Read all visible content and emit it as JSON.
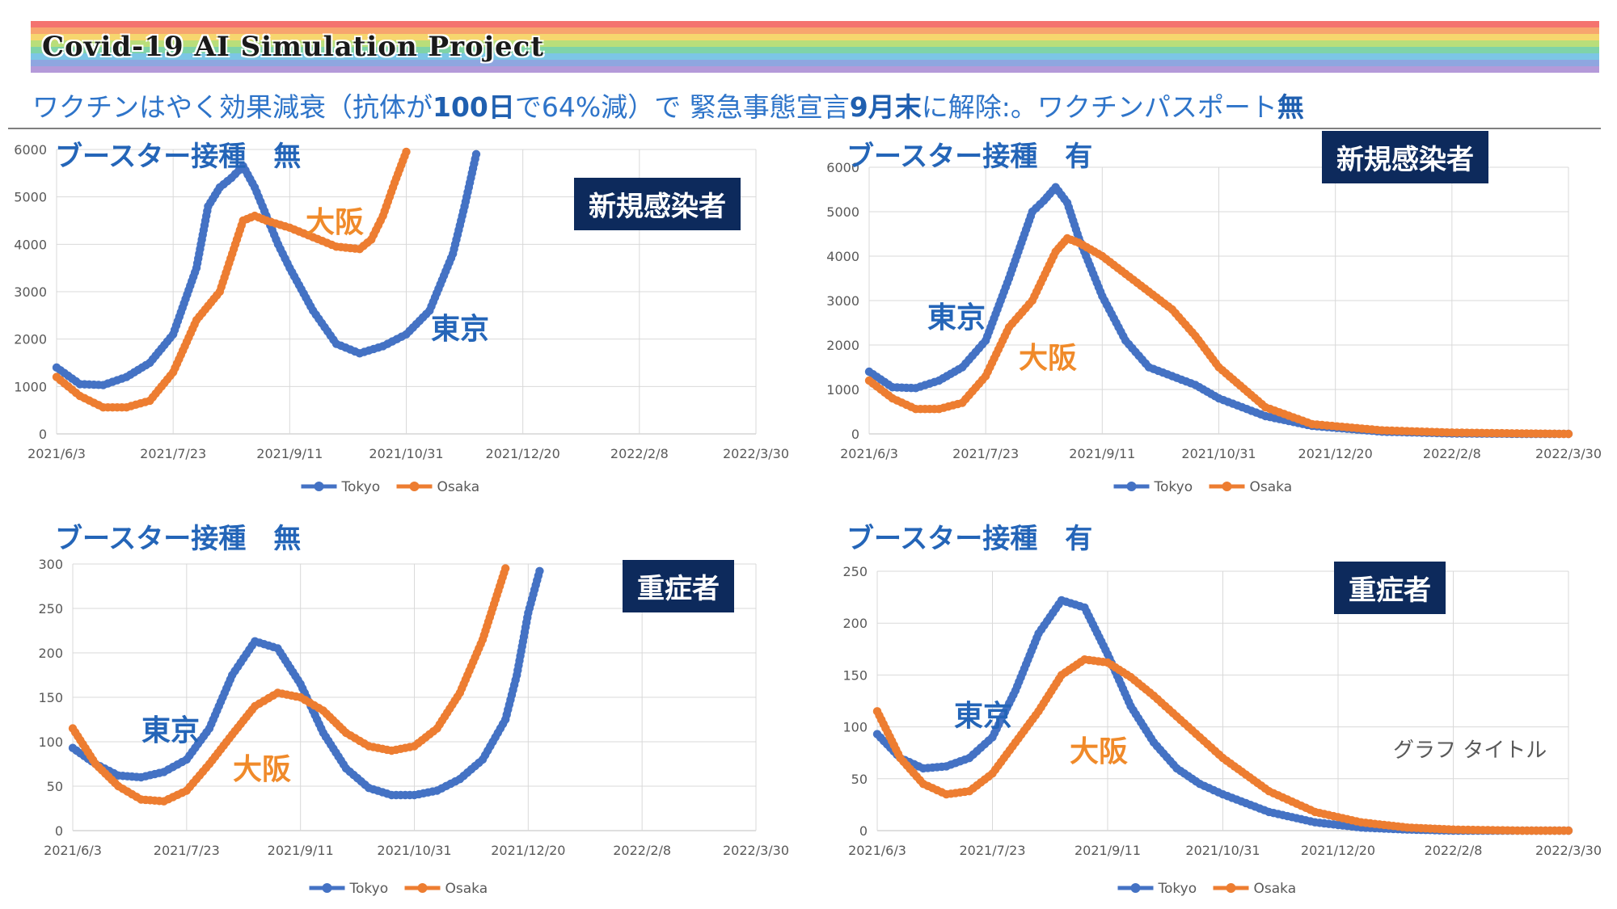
{
  "header": {
    "title": "Covid-19 AI Simulation Project",
    "subtitle_parts": [
      {
        "text": "ワクチンはやく効果減衰（抗体が",
        "em": false
      },
      {
        "text": "100日",
        "em": true
      },
      {
        "text": "で64%減）で 緊急事態宣言",
        "em": false
      },
      {
        "text": "9月末",
        "em": true
      },
      {
        "text": "に解除:。ワクチンパスポート",
        "em": false
      },
      {
        "text": "無",
        "em": true
      }
    ],
    "rainbow_colors": [
      "#f4736f",
      "#f7a56e",
      "#f6d66e",
      "#b9de7a",
      "#7fd3a8",
      "#7cc6e5",
      "#8fa6e0",
      "#b49ad9"
    ]
  },
  "colors": {
    "tokyo": "#4472c4",
    "osaka": "#ed7d31",
    "badge": "#0d2a5c",
    "grid": "#d9d9d9"
  },
  "legend": {
    "tokyo": "Tokyo",
    "osaka": "Osaka"
  },
  "panels": [
    {
      "title": "ブースター接種　無",
      "badge": "新規感染者",
      "label_tokyo": "東京",
      "label_osaka": "大阪",
      "chart_title": ""
    },
    {
      "title": "ブースター接種　有",
      "badge": "新規感染者",
      "label_tokyo": "東京",
      "label_osaka": "大阪",
      "chart_title": ""
    },
    {
      "title": "ブースター接種　無",
      "badge": "重症者",
      "label_tokyo": "東京",
      "label_osaka": "大阪",
      "chart_title": ""
    },
    {
      "title": "ブースター接種　有",
      "badge": "重症者",
      "label_tokyo": "東京",
      "label_osaka": "大阪",
      "chart_title": "グラフ タイトル"
    }
  ],
  "chart_data": [
    {
      "type": "line",
      "title": "",
      "xlabel": "",
      "ylabel": "",
      "x_ticks": [
        "2021/6/3",
        "2021/7/23",
        "2021/9/11",
        "2021/10/31",
        "2021/12/20",
        "2022/2/8",
        "2022/3/30"
      ],
      "ylim": [
        0,
        6000
      ],
      "y_ticks": [
        0,
        1000,
        2000,
        3000,
        4000,
        5000,
        6000
      ],
      "grid": true,
      "legend": "bottom",
      "series": [
        {
          "name": "Tokyo",
          "x": [
            "2021/6/3",
            "2021/6/13",
            "2021/6/23",
            "2021/7/3",
            "2021/7/13",
            "2021/7/23",
            "2021/8/2",
            "2021/8/7",
            "2021/8/12",
            "2021/8/17",
            "2021/8/22",
            "2021/8/27",
            "2021/9/1",
            "2021/9/6",
            "2021/9/11",
            "2021/9/21",
            "2021/10/1",
            "2021/10/11",
            "2021/10/21",
            "2021/10/31",
            "2021/11/10",
            "2021/11/20",
            "2021/11/25",
            "2021/11/30"
          ],
          "values": [
            1400,
            1050,
            1030,
            1200,
            1500,
            2100,
            3500,
            4800,
            5200,
            5400,
            5650,
            5200,
            4600,
            4000,
            3500,
            2600,
            1900,
            1700,
            1850,
            2100,
            2600,
            3800,
            4800,
            5900
          ]
        },
        {
          "name": "Osaka",
          "x": [
            "2021/6/3",
            "2021/6/13",
            "2021/6/23",
            "2021/7/3",
            "2021/7/13",
            "2021/7/23",
            "2021/8/2",
            "2021/8/12",
            "2021/8/22",
            "2021/8/27",
            "2021/9/1",
            "2021/9/11",
            "2021/9/21",
            "2021/10/1",
            "2021/10/11",
            "2021/10/16",
            "2021/10/21",
            "2021/10/26",
            "2021/10/31"
          ],
          "values": [
            1200,
            800,
            560,
            560,
            700,
            1300,
            2400,
            3000,
            4500,
            4600,
            4500,
            4350,
            4150,
            3950,
            3900,
            4100,
            4600,
            5300,
            5950
          ]
        }
      ]
    },
    {
      "type": "line",
      "title": "",
      "xlabel": "",
      "ylabel": "",
      "x_ticks": [
        "2021/6/3",
        "2021/7/23",
        "2021/9/11",
        "2021/10/31",
        "2021/12/20",
        "2022/2/8",
        "2022/3/30"
      ],
      "ylim": [
        0,
        6000
      ],
      "y_ticks": [
        0,
        1000,
        2000,
        3000,
        4000,
        5000,
        6000
      ],
      "grid": true,
      "legend": "bottom",
      "series": [
        {
          "name": "Tokyo",
          "x": [
            "2021/6/3",
            "2021/6/13",
            "2021/6/23",
            "2021/7/3",
            "2021/7/13",
            "2021/7/23",
            "2021/8/2",
            "2021/8/12",
            "2021/8/17",
            "2021/8/22",
            "2021/8/27",
            "2021/9/1",
            "2021/9/11",
            "2021/9/21",
            "2021/10/1",
            "2021/10/11",
            "2021/10/21",
            "2021/10/31",
            "2021/11/20",
            "2021/12/10",
            "2022/1/9",
            "2022/2/8",
            "2022/3/10",
            "2022/3/30"
          ],
          "values": [
            1400,
            1050,
            1030,
            1200,
            1500,
            2100,
            3500,
            5000,
            5250,
            5550,
            5200,
            4400,
            3100,
            2100,
            1500,
            1300,
            1100,
            800,
            400,
            180,
            50,
            10,
            0,
            0
          ]
        },
        {
          "name": "Osaka",
          "x": [
            "2021/6/3",
            "2021/6/13",
            "2021/6/23",
            "2021/7/3",
            "2021/7/13",
            "2021/7/23",
            "2021/8/2",
            "2021/8/12",
            "2021/8/22",
            "2021/8/27",
            "2021/9/1",
            "2021/9/11",
            "2021/9/21",
            "2021/10/1",
            "2021/10/11",
            "2021/10/21",
            "2021/10/31",
            "2021/11/20",
            "2021/12/10",
            "2022/1/9",
            "2022/2/8",
            "2022/3/10",
            "2022/3/30"
          ],
          "values": [
            1200,
            800,
            560,
            560,
            700,
            1300,
            2400,
            3000,
            4100,
            4400,
            4300,
            4000,
            3600,
            3200,
            2800,
            2200,
            1500,
            600,
            220,
            80,
            30,
            10,
            0
          ]
        }
      ]
    },
    {
      "type": "line",
      "title": "",
      "xlabel": "",
      "ylabel": "",
      "x_ticks": [
        "2021/6/3",
        "2021/7/23",
        "2021/9/11",
        "2021/10/31",
        "2021/12/20",
        "2022/2/8",
        "2022/3/30"
      ],
      "ylim": [
        0,
        300
      ],
      "y_ticks": [
        0,
        50,
        100,
        150,
        200,
        250,
        300
      ],
      "grid": true,
      "legend": "bottom",
      "series": [
        {
          "name": "Tokyo",
          "x": [
            "2021/6/3",
            "2021/6/13",
            "2021/6/23",
            "2021/7/3",
            "2021/7/13",
            "2021/7/23",
            "2021/8/2",
            "2021/8/12",
            "2021/8/22",
            "2021/9/1",
            "2021/9/11",
            "2021/9/21",
            "2021/10/1",
            "2021/10/11",
            "2021/10/21",
            "2021/10/31",
            "2021/11/10",
            "2021/11/20",
            "2021/11/30",
            "2021/12/10",
            "2021/12/15",
            "2021/12/20",
            "2021/12/25"
          ],
          "values": [
            93,
            75,
            62,
            60,
            66,
            80,
            115,
            175,
            213,
            205,
            165,
            110,
            70,
            48,
            40,
            40,
            45,
            58,
            80,
            125,
            175,
            245,
            292
          ]
        },
        {
          "name": "Osaka",
          "x": [
            "2021/6/3",
            "2021/6/13",
            "2021/6/23",
            "2021/7/3",
            "2021/7/13",
            "2021/7/23",
            "2021/8/2",
            "2021/8/12",
            "2021/8/22",
            "2021/9/1",
            "2021/9/11",
            "2021/9/21",
            "2021/10/1",
            "2021/10/11",
            "2021/10/21",
            "2021/10/31",
            "2021/11/10",
            "2021/11/20",
            "2021/11/30",
            "2021/12/5",
            "2021/12/10"
          ],
          "values": [
            115,
            75,
            50,
            35,
            33,
            45,
            75,
            108,
            140,
            155,
            150,
            135,
            110,
            95,
            90,
            95,
            115,
            155,
            215,
            255,
            295
          ]
        }
      ]
    },
    {
      "type": "line",
      "title": "グラフ タイトル",
      "xlabel": "",
      "ylabel": "",
      "x_ticks": [
        "2021/6/3",
        "2021/7/23",
        "2021/9/11",
        "2021/10/31",
        "2021/12/20",
        "2022/2/8",
        "2022/3/30"
      ],
      "ylim": [
        0,
        250
      ],
      "y_ticks": [
        0,
        50,
        100,
        150,
        200,
        250
      ],
      "grid": true,
      "legend": "bottom",
      "series": [
        {
          "name": "Tokyo",
          "x": [
            "2021/6/3",
            "2021/6/13",
            "2021/6/23",
            "2021/7/3",
            "2021/7/13",
            "2021/7/23",
            "2021/8/2",
            "2021/8/12",
            "2021/8/22",
            "2021/9/1",
            "2021/9/11",
            "2021/9/21",
            "2021/10/1",
            "2021/10/11",
            "2021/10/21",
            "2021/10/31",
            "2021/11/20",
            "2021/12/10",
            "2021/12/30",
            "2022/1/19",
            "2022/2/8",
            "2022/3/10",
            "2022/3/30"
          ],
          "values": [
            93,
            70,
            60,
            62,
            70,
            90,
            135,
            190,
            222,
            215,
            170,
            120,
            85,
            60,
            45,
            35,
            18,
            8,
            3,
            1,
            0,
            0,
            0
          ]
        },
        {
          "name": "Osaka",
          "x": [
            "2021/6/3",
            "2021/6/13",
            "2021/6/23",
            "2021/7/3",
            "2021/7/13",
            "2021/7/23",
            "2021/8/2",
            "2021/8/12",
            "2021/8/22",
            "2021/9/1",
            "2021/9/11",
            "2021/9/21",
            "2021/10/1",
            "2021/10/11",
            "2021/10/21",
            "2021/10/31",
            "2021/11/20",
            "2021/12/10",
            "2021/12/30",
            "2022/1/19",
            "2022/2/8",
            "2022/3/10",
            "2022/3/30"
          ],
          "values": [
            115,
            70,
            45,
            35,
            38,
            55,
            85,
            115,
            150,
            165,
            162,
            148,
            130,
            110,
            90,
            70,
            38,
            18,
            8,
            3,
            1,
            0,
            0
          ]
        }
      ]
    }
  ]
}
